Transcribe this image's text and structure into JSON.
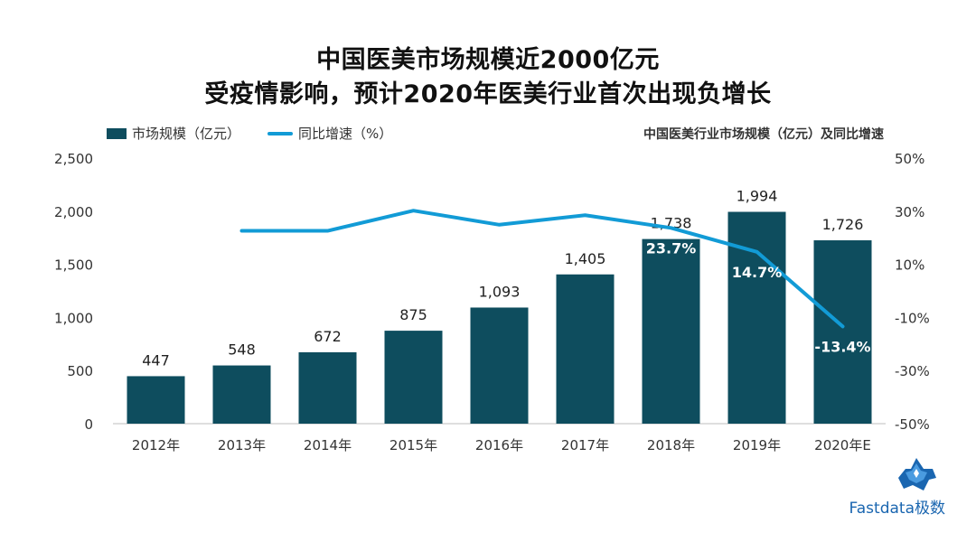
{
  "page": {
    "title_line1": "中国医美市场规模近2000亿元",
    "title_line2": "受疫情影响，预计2020年医美行业首次出现负增长",
    "subtitle": "中国医美行业市场规模（亿元）及同比增速",
    "brand": "Fastdata极数"
  },
  "legend": {
    "bar_label": "市场规模（亿元）",
    "line_label": "同比增速（%）"
  },
  "colors": {
    "bar": "#0e4d5e",
    "line": "#129bd6",
    "brand": "#1a66b0"
  },
  "chart_data": {
    "type": "bar+line",
    "categories": [
      "2012年",
      "2013年",
      "2014年",
      "2015年",
      "2016年",
      "2017年",
      "2018年",
      "2019年",
      "2020年E"
    ],
    "series": [
      {
        "name": "市场规模（亿元）",
        "type": "bar",
        "axis": "left",
        "values": [
          447,
          548,
          672,
          875,
          1093,
          1405,
          1738,
          1994,
          1726
        ],
        "labels": [
          "447",
          "548",
          "672",
          "875",
          "1,093",
          "1,405",
          "1,738",
          "1,994",
          "1,726"
        ]
      },
      {
        "name": "同比增速（%）",
        "type": "line",
        "axis": "right",
        "values": [
          null,
          22.6,
          22.6,
          30.2,
          24.9,
          28.5,
          23.7,
          14.7,
          -13.4
        ],
        "labels": [
          null,
          null,
          null,
          null,
          null,
          null,
          "23.7%",
          "14.7%",
          "-13.4%"
        ]
      }
    ],
    "left_axis": {
      "range": [
        0,
        2500
      ],
      "ticks": [
        0,
        500,
        1000,
        1500,
        2000,
        2500
      ],
      "tick_labels": [
        "0",
        "500",
        "1,000",
        "1,500",
        "2,000",
        "2,500"
      ]
    },
    "right_axis": {
      "range": [
        -50,
        50
      ],
      "ticks": [
        -50,
        -30,
        -10,
        10,
        30,
        50
      ],
      "tick_labels": [
        "-50%",
        "-30%",
        "-10%",
        "10%",
        "30%",
        "50%"
      ]
    },
    "grid": false,
    "legend_position": "top-left"
  }
}
